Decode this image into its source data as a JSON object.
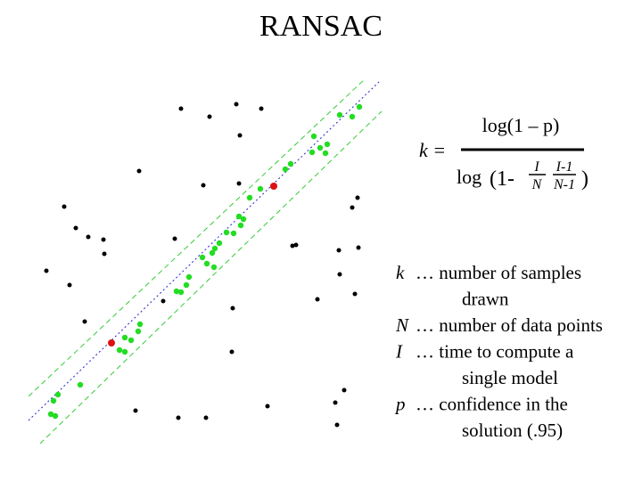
{
  "title": "RANSAC",
  "formula": {
    "lhs": "k =",
    "numerator": "log(1 – p)",
    "denominator": {
      "log": "log",
      "open": "(1-",
      "frac1": {
        "num": "I",
        "den": "N"
      },
      "frac2": {
        "num": "I-1",
        "den": "N-1"
      },
      "close": ")"
    }
  },
  "definitions": [
    {
      "symbol": "k",
      "text": "… number of samples",
      "continuation": "drawn"
    },
    {
      "symbol": "N",
      "text": "… number of data points"
    },
    {
      "symbol": "I",
      "text": "… time to compute a",
      "continuation": "single model"
    },
    {
      "symbol": "p",
      "text": "… confidence in the",
      "continuation": "solution (.95)"
    }
  ]
}
